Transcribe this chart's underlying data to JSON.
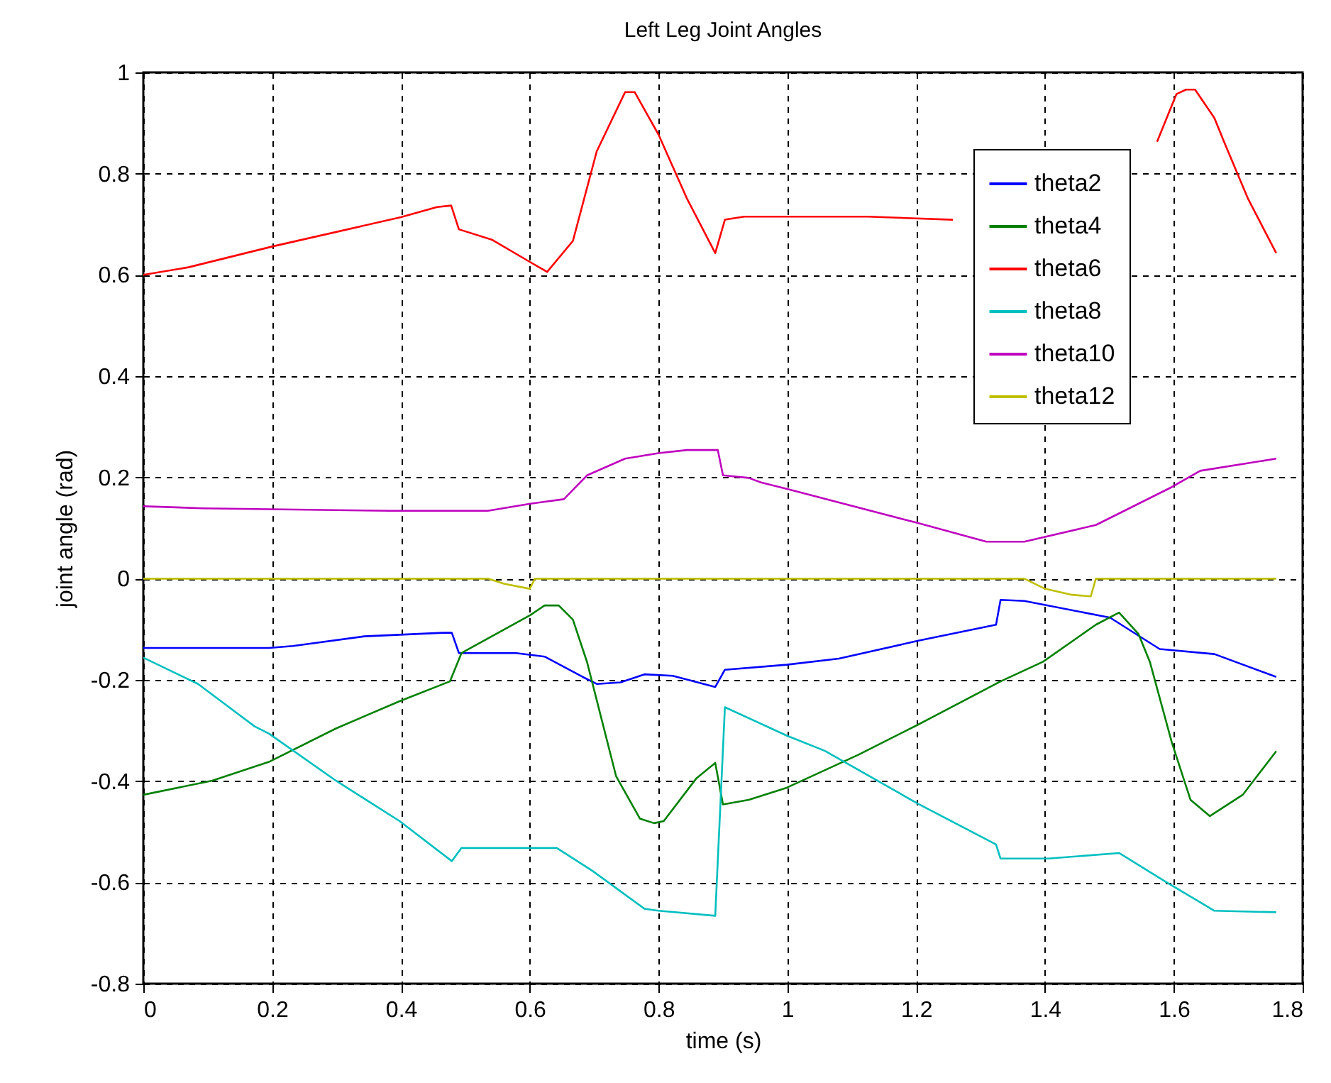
{
  "chart_data": {
    "type": "line",
    "title": "Left Leg Joint Angles",
    "xlabel": "time (s)",
    "ylabel": "joint angle (rad)",
    "xlim": [
      0,
      1.8
    ],
    "xticks": [
      0,
      0.2,
      0.4,
      0.6,
      0.8,
      1,
      1.2,
      1.4,
      1.6,
      1.8
    ],
    "ylim": [
      -0.8,
      1
    ],
    "yticks": [
      -0.8,
      -0.6,
      -0.4,
      -0.2,
      0,
      0.2,
      0.4,
      0.6,
      0.8,
      1
    ],
    "grid": true,
    "legend": "top right",
    "line_style": "solid",
    "series": [
      {
        "name": "theta2",
        "color": "#0000ff",
        "x": [
          0,
          0.195,
          0.232,
          0.343,
          0.465,
          0.479,
          0.49,
          0.579,
          0.623,
          0.682,
          0.704,
          0.741,
          0.778,
          0.822,
          0.888,
          0.903,
          0.999,
          1.08,
          1.202,
          1.324,
          1.331,
          1.368,
          1.501,
          1.578,
          1.663,
          1.759
        ],
        "values": [
          -0.137,
          -0.137,
          -0.133,
          -0.114,
          -0.107,
          -0.107,
          -0.147,
          -0.147,
          -0.154,
          -0.194,
          -0.208,
          -0.205,
          -0.189,
          -0.192,
          -0.214,
          -0.18,
          -0.17,
          -0.158,
          -0.123,
          -0.091,
          -0.042,
          -0.044,
          -0.077,
          -0.139,
          -0.149,
          -0.194
        ]
      },
      {
        "name": "theta4",
        "color": "#008000",
        "x": [
          0,
          0.107,
          0.195,
          0.299,
          0.398,
          0.476,
          0.494,
          0.601,
          0.623,
          0.645,
          0.667,
          0.689,
          0.734,
          0.771,
          0.793,
          0.808,
          0.859,
          0.888,
          0.9,
          0.94,
          0.999,
          1.11,
          1.202,
          1.331,
          1.397,
          1.479,
          1.515,
          1.545,
          1.563,
          1.597,
          1.626,
          1.656,
          1.707,
          1.759
        ],
        "values": [
          -0.427,
          -0.399,
          -0.362,
          -0.296,
          -0.242,
          -0.203,
          -0.147,
          -0.072,
          -0.053,
          -0.053,
          -0.081,
          -0.165,
          -0.39,
          -0.474,
          -0.483,
          -0.479,
          -0.394,
          -0.364,
          -0.446,
          -0.437,
          -0.413,
          -0.348,
          -0.289,
          -0.203,
          -0.164,
          -0.091,
          -0.067,
          -0.109,
          -0.165,
          -0.324,
          -0.437,
          -0.469,
          -0.427,
          -0.341
        ]
      },
      {
        "name": "theta6",
        "color": "#ff0000",
        "x": [
          0,
          0.07,
          0.2,
          0.4,
          0.456,
          0.478,
          0.49,
          0.542,
          0.601,
          0.627,
          0.667,
          0.704,
          0.748,
          0.763,
          0.8,
          0.844,
          0.888,
          0.903,
          0.933,
          1.125,
          1.257,
          1.4,
          1.574,
          1.604,
          1.619,
          1.633,
          1.663,
          1.678,
          1.715,
          1.759
        ],
        "values": [
          0.6,
          0.615,
          0.656,
          0.714,
          0.734,
          0.737,
          0.69,
          0.669,
          0.625,
          0.606,
          0.667,
          0.844,
          0.961,
          0.961,
          0.877,
          0.751,
          0.643,
          0.709,
          0.715,
          0.715,
          0.709,
          null,
          0.863,
          0.957,
          0.966,
          0.966,
          0.91,
          0.863,
          0.751,
          0.643
        ]
      },
      {
        "name": "theta8",
        "color": "#00bfbf",
        "x": [
          0,
          0.085,
          0.173,
          0.195,
          0.299,
          0.398,
          0.479,
          0.494,
          0.586,
          0.642,
          0.697,
          0.778,
          0.8,
          0.888,
          0.903,
          0.999,
          1.058,
          1.202,
          1.324,
          1.331,
          1.405,
          1.515,
          1.589,
          1.663,
          1.759
        ],
        "values": [
          -0.156,
          -0.208,
          -0.292,
          -0.306,
          -0.399,
          -0.479,
          -0.558,
          -0.532,
          -0.532,
          -0.532,
          -0.577,
          -0.652,
          -0.656,
          -0.666,
          -0.254,
          -0.31,
          -0.34,
          -0.444,
          -0.525,
          -0.553,
          -0.553,
          -0.542,
          -0.6,
          -0.656,
          -0.659
        ]
      },
      {
        "name": "theta10",
        "color": "#bf00bf",
        "x": [
          0,
          0.092,
          0.383,
          0.535,
          0.601,
          0.653,
          0.689,
          0.748,
          0.8,
          0.844,
          0.892,
          0.9,
          0.94,
          0.959,
          1.003,
          1.202,
          1.309,
          1.368,
          1.479,
          1.597,
          1.641,
          1.759
        ],
        "values": [
          0.143,
          0.139,
          0.134,
          0.134,
          0.148,
          0.157,
          0.204,
          0.237,
          0.248,
          0.254,
          0.254,
          0.204,
          0.199,
          0.19,
          0.176,
          0.11,
          0.073,
          0.073,
          0.106,
          0.181,
          0.213,
          0.237
        ]
      },
      {
        "name": "theta12",
        "color": "#bfbf00",
        "x": [
          0,
          0.535,
          0.56,
          0.6,
          0.608,
          1.368,
          1.4,
          1.442,
          1.471,
          1.479,
          1.759
        ],
        "values": [
          0,
          0,
          -0.01,
          -0.02,
          0,
          0,
          -0.02,
          -0.032,
          -0.035,
          0,
          0
        ]
      }
    ]
  }
}
